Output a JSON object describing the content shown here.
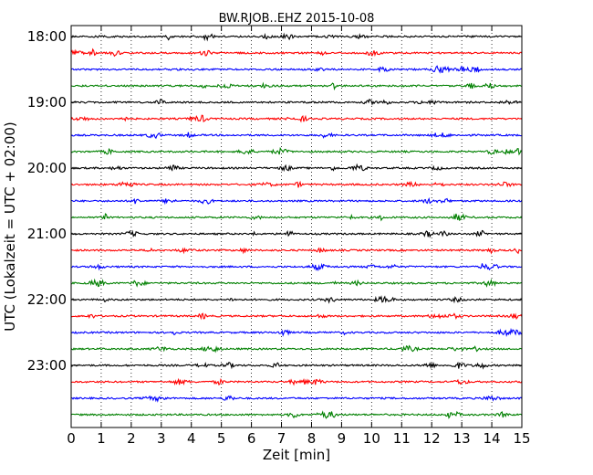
{
  "chart_data": {
    "type": "line",
    "title": "BW.RJOB..EHZ 2015-10-08",
    "xlabel": "Zeit  [min]",
    "ylabel": "UTC (Lokalzeit = UTC + 02:00)",
    "xlim": [
      0,
      15
    ],
    "x_ticks": [
      "0",
      "1",
      "2",
      "3",
      "4",
      "5",
      "6",
      "7",
      "8",
      "9",
      "10",
      "11",
      "12",
      "13",
      "14",
      "15"
    ],
    "y_tick_labels": [
      "18:00",
      "19:00",
      "20:00",
      "21:00",
      "22:00",
      "23:00"
    ],
    "grid": "vertical dotted lines at each minute",
    "trace_colors": [
      "#000000",
      "#ff0000",
      "#0000ff",
      "#008000"
    ],
    "traces": [
      {
        "start": "18:00",
        "color": "#000000"
      },
      {
        "start": "18:15",
        "color": "#ff0000"
      },
      {
        "start": "18:30",
        "color": "#0000ff"
      },
      {
        "start": "18:45",
        "color": "#008000"
      },
      {
        "start": "19:00",
        "color": "#000000"
      },
      {
        "start": "19:15",
        "color": "#ff0000"
      },
      {
        "start": "19:30",
        "color": "#0000ff"
      },
      {
        "start": "19:45",
        "color": "#008000"
      },
      {
        "start": "20:00",
        "color": "#000000"
      },
      {
        "start": "20:15",
        "color": "#ff0000"
      },
      {
        "start": "20:30",
        "color": "#0000ff"
      },
      {
        "start": "20:45",
        "color": "#008000"
      },
      {
        "start": "21:00",
        "color": "#000000"
      },
      {
        "start": "21:15",
        "color": "#ff0000"
      },
      {
        "start": "21:30",
        "color": "#0000ff"
      },
      {
        "start": "21:45",
        "color": "#008000"
      },
      {
        "start": "22:00",
        "color": "#000000"
      },
      {
        "start": "22:15",
        "color": "#ff0000"
      },
      {
        "start": "22:30",
        "color": "#0000ff"
      },
      {
        "start": "22:45",
        "color": "#008000"
      },
      {
        "start": "23:00",
        "color": "#000000"
      },
      {
        "start": "23:15",
        "color": "#ff0000"
      },
      {
        "start": "23:30",
        "color": "#0000ff"
      },
      {
        "start": "23:45",
        "color": "#008000"
      }
    ]
  }
}
